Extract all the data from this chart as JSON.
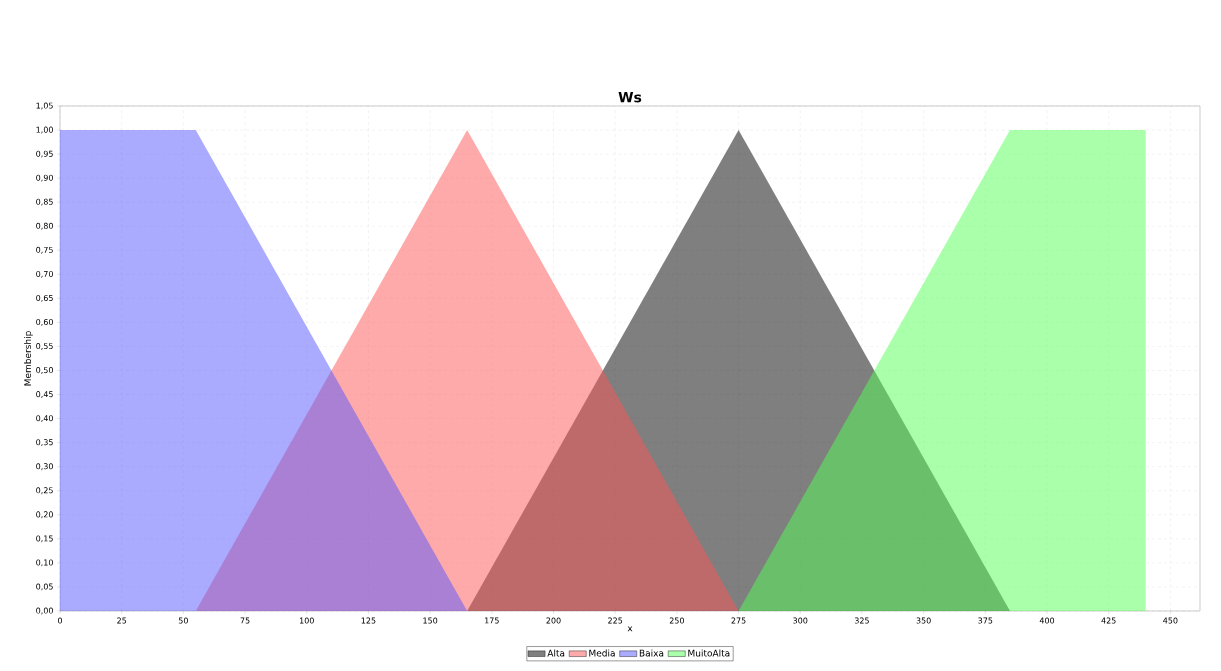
{
  "chart_data": {
    "type": "area",
    "title": "Ws",
    "xlabel": "x",
    "ylabel": "Membership",
    "series": [
      {
        "name": "Alta",
        "color": "#000000",
        "x": [
          165,
          275,
          385
        ],
        "values": [
          0,
          1,
          0
        ]
      },
      {
        "name": "Media",
        "color": "#ff5555",
        "x": [
          55,
          165,
          275
        ],
        "values": [
          0,
          1,
          0
        ]
      },
      {
        "name": "Baixa",
        "color": "#5555ff",
        "x": [
          0,
          55,
          165
        ],
        "values": [
          1,
          1,
          0
        ]
      },
      {
        "name": "MuitoAlta",
        "color": "#55ff55",
        "x": [
          275,
          385,
          440,
          440
        ],
        "values": [
          0,
          1,
          1,
          0
        ]
      }
    ],
    "xlim": [
      0,
      462
    ],
    "ylim": [
      0,
      1.05
    ],
    "xticks": [
      0,
      25,
      50,
      75,
      100,
      125,
      150,
      175,
      200,
      225,
      250,
      275,
      300,
      325,
      350,
      375,
      400,
      425,
      450
    ],
    "yticks": [
      {
        "value": 0,
        "label": "0,00"
      },
      {
        "value": 0.05,
        "label": "0,05"
      },
      {
        "value": 0.1,
        "label": "0,10"
      },
      {
        "value": 0.15,
        "label": "0,15"
      },
      {
        "value": 0.2,
        "label": "0,20"
      },
      {
        "value": 0.25,
        "label": "0,25"
      },
      {
        "value": 0.3,
        "label": "0,30"
      },
      {
        "value": 0.35,
        "label": "0,35"
      },
      {
        "value": 0.4,
        "label": "0,40"
      },
      {
        "value": 0.45,
        "label": "0,45"
      },
      {
        "value": 0.5,
        "label": "0,50"
      },
      {
        "value": 0.55,
        "label": "0,55"
      },
      {
        "value": 0.6,
        "label": "0,60"
      },
      {
        "value": 0.65,
        "label": "0,65"
      },
      {
        "value": 0.7,
        "label": "0,70"
      },
      {
        "value": 0.75,
        "label": "0,75"
      },
      {
        "value": 0.8,
        "label": "0,80"
      },
      {
        "value": 0.85,
        "label": "0,85"
      },
      {
        "value": 0.9,
        "label": "0,90"
      },
      {
        "value": 0.95,
        "label": "0,95"
      },
      {
        "value": 1,
        "label": "1,00"
      },
      {
        "value": 1.05,
        "label": "1,05"
      }
    ],
    "grid": true,
    "legend": "bottom"
  }
}
